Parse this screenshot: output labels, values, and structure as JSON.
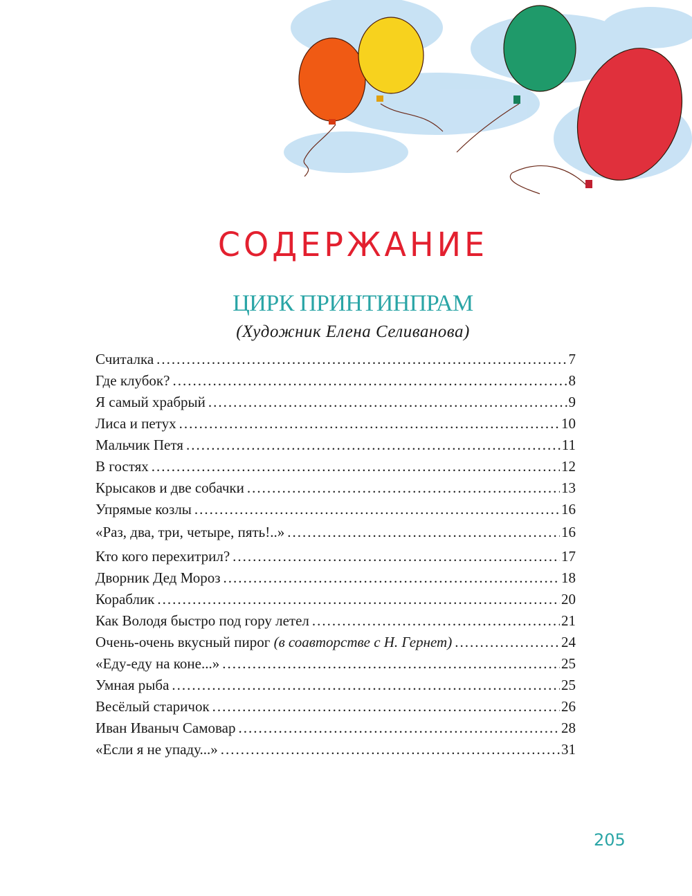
{
  "heading": "СОДЕРЖАНИЕ",
  "section": {
    "title": "ЦИРК ПРИНТИНПРАМ",
    "artist": "(Художник Елена Селиванова)"
  },
  "entries": [
    {
      "title": "Считалка",
      "page": "7"
    },
    {
      "title": "Где клубок?",
      "page": "8"
    },
    {
      "title": "Я самый храбрый",
      "page": "9"
    },
    {
      "title": "Лиса и петух",
      "page": "10"
    },
    {
      "title": "Мальчик Петя",
      "page": "11"
    },
    {
      "title": "В гостях",
      "page": "12"
    },
    {
      "title": "Крысаков и две собачки",
      "page": "13"
    },
    {
      "title": "Упрямые козлы",
      "page": "16"
    },
    {
      "title": "«Раз, два, три, четыре, пять!..»",
      "page": "16"
    },
    {
      "title": "Кто кого перехитрил?",
      "page": "17"
    },
    {
      "title": "Дворник Дед Мороз",
      "page": "18"
    },
    {
      "title": "Кораблик",
      "page": "20"
    },
    {
      "title": "Как Володя быстро под гору летел",
      "page": "21"
    },
    {
      "title": "Очень-очень вкусный пирог",
      "note": "(в соавторстве с Н. Гернет)",
      "page": "24"
    },
    {
      "title": "«Еду-еду на коне...»",
      "page": "25"
    },
    {
      "title": "Умная рыба",
      "page": "25"
    },
    {
      "title": "Весёлый старичок",
      "page": "26"
    },
    {
      "title": "Иван Иваныч Самовар",
      "page": "28"
    },
    {
      "title": "«Если я не упаду...»",
      "page": "31"
    }
  ],
  "page_number": "205",
  "colors": {
    "heading": "#e3202f",
    "section": "#2aa5a6",
    "balloons": [
      "#f05a14",
      "#f7d21e",
      "#1f9a6a",
      "#e0303c"
    ],
    "sky": "#a9d3ee"
  }
}
